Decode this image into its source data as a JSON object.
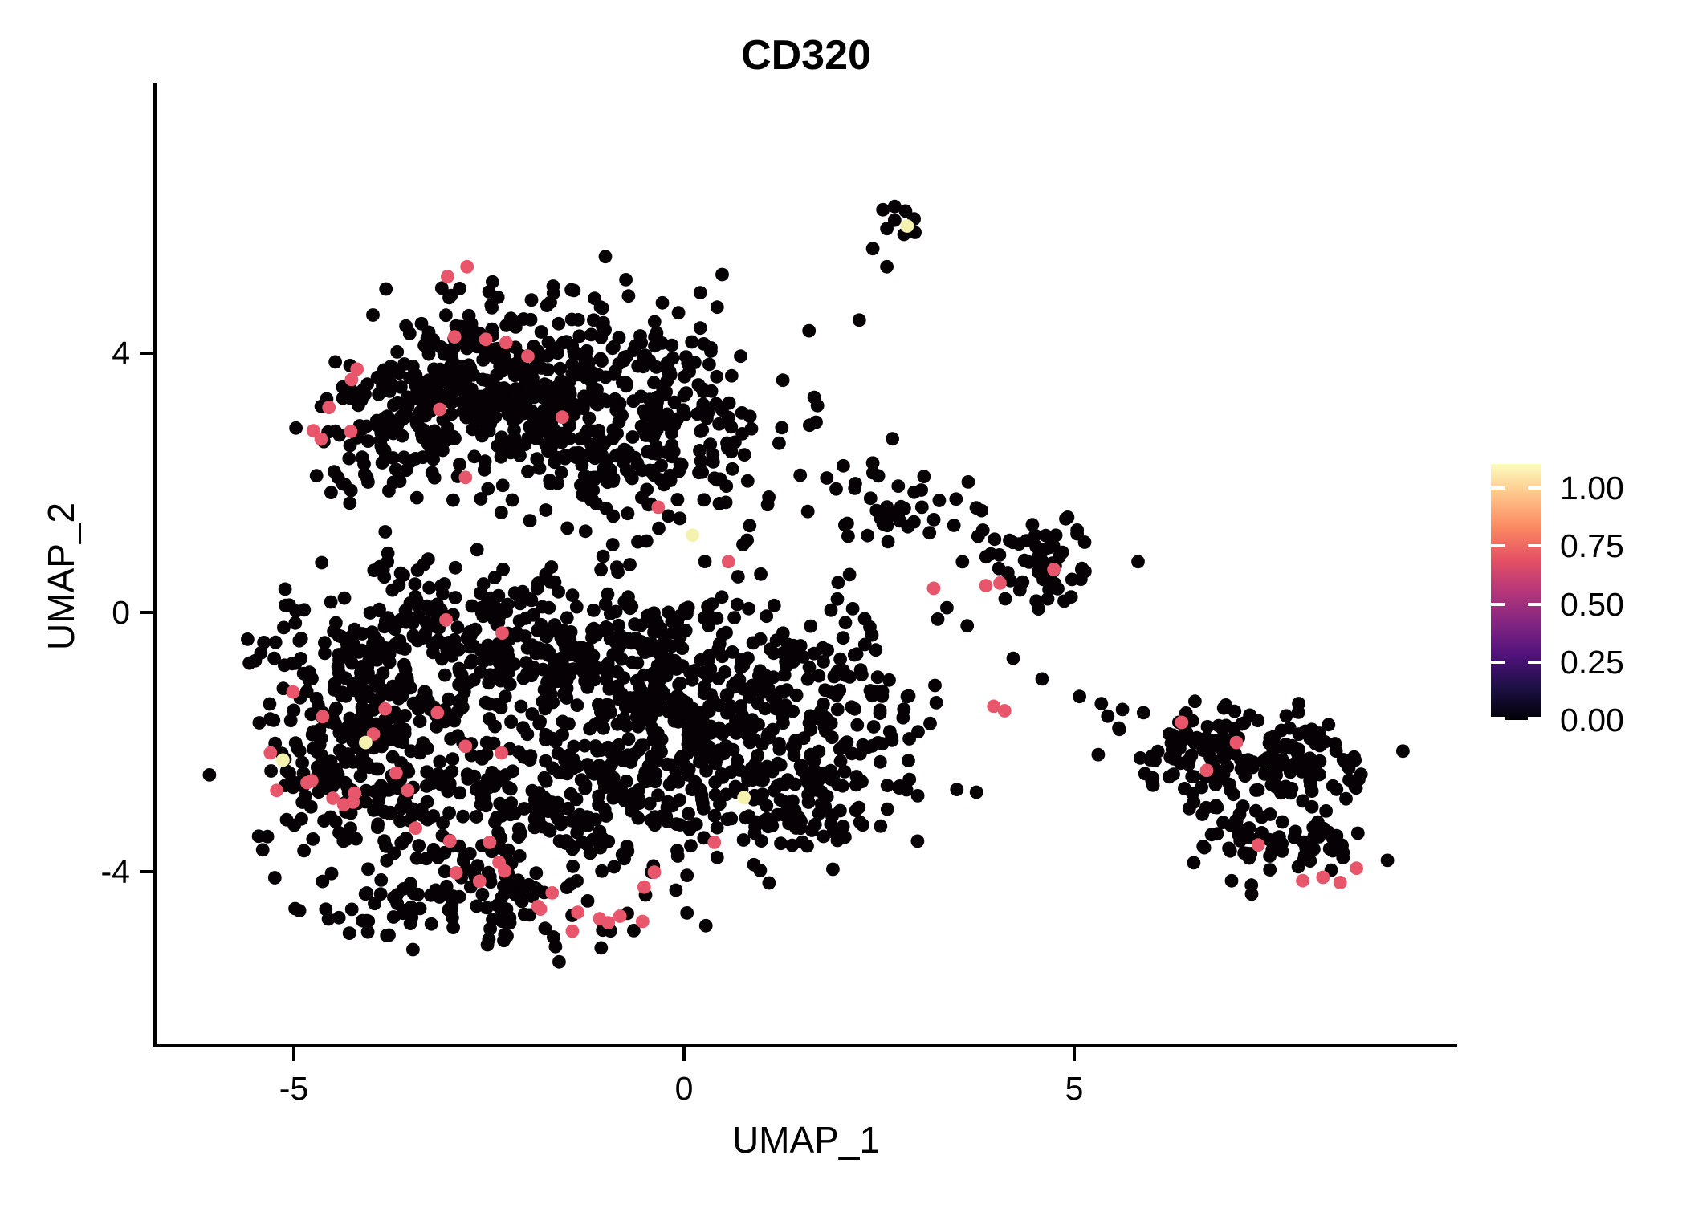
{
  "chart_data": {
    "type": "scatter",
    "title": "CD320",
    "xlabel": "UMAP_1",
    "ylabel": "UMAP_2",
    "x_ticks": [
      -5,
      0,
      5
    ],
    "x_tick_labels": [
      "-5",
      "0",
      "5"
    ],
    "y_ticks": [
      4,
      0,
      -4
    ],
    "y_tick_labels": [
      "4",
      "0",
      "-4"
    ],
    "xlim": [
      -6.78,
      9.91
    ],
    "ylim": [
      -6.69,
      8.17
    ],
    "grid": false,
    "legend": {
      "position": "right",
      "ticks": [
        "1.00",
        "0.75",
        "0.50",
        "0.25",
        "0.00"
      ],
      "tick_values": [
        1.0,
        0.75,
        0.5,
        0.25,
        0.0
      ],
      "value_range": [
        0,
        1.1
      ],
      "colormap": "magma",
      "gradient_stops": [
        "#000004",
        "#1c1044",
        "#4f127b",
        "#812581",
        "#b5367a",
        "#e55064",
        "#fb8861",
        "#fec287",
        "#fcfdbf"
      ]
    },
    "point_style": {
      "radius_px": 8.4,
      "color_zero": "#050105",
      "color_mid_high": "#E8566B",
      "color_high": "#F5F2AF"
    },
    "seed": 42,
    "clusters": [
      {
        "name": "upper-left-core",
        "cx": -2.2,
        "cy": 3.9,
        "sx": 1.05,
        "sy": 0.55,
        "n": 230
      },
      {
        "name": "upper-left-west",
        "cx": -3.8,
        "cy": 2.7,
        "sx": 0.55,
        "sy": 0.5,
        "n": 100
      },
      {
        "name": "upper-left-southeast",
        "cx": -0.9,
        "cy": 2.5,
        "sx": 0.8,
        "sy": 0.65,
        "n": 170
      },
      {
        "name": "upper-left-northeast-arm",
        "cx": -0.05,
        "cy": 3.6,
        "sx": 0.4,
        "sy": 0.55,
        "n": 45
      },
      {
        "name": "upper-left-midwest",
        "cx": -2.9,
        "cy": 3.3,
        "sx": 0.6,
        "sy": 0.5,
        "n": 80
      },
      {
        "name": "upper-left-fill",
        "cx": -1.6,
        "cy": 2.95,
        "sx": 0.7,
        "sy": 0.6,
        "n": 90
      },
      {
        "name": "upper-middle-sparse",
        "cx": 1.2,
        "cy": 2.7,
        "sx": 0.9,
        "sy": 0.85,
        "n": 28
      },
      {
        "name": "lower-blob-top-band",
        "cx": -2.6,
        "cy": -0.3,
        "sx": 1.25,
        "sy": 0.55,
        "n": 260
      },
      {
        "name": "lower-blob-west",
        "cx": -4.3,
        "cy": -2.3,
        "sx": 0.6,
        "sy": 0.75,
        "n": 190
      },
      {
        "name": "lower-blob-center",
        "cx": -2.0,
        "cy": -3.0,
        "sx": 1.05,
        "sy": 0.8,
        "n": 280
      },
      {
        "name": "lower-blob-east",
        "cx": 0.3,
        "cy": -1.3,
        "sx": 0.75,
        "sy": 0.95,
        "n": 230
      },
      {
        "name": "lower-blob-bottom-rim",
        "cx": -2.8,
        "cy": -4.5,
        "sx": 1.0,
        "sy": 0.3,
        "n": 90
      },
      {
        "name": "lower-blob-west-upper",
        "cx": -3.9,
        "cy": -1.2,
        "sx": 0.6,
        "sy": 0.5,
        "n": 90
      },
      {
        "name": "lower-blob-right-lobe",
        "cx": 1.9,
        "cy": -1.7,
        "sx": 0.65,
        "sy": 0.8,
        "n": 150
      },
      {
        "name": "lower-blob-right-lobe-south",
        "cx": 1.3,
        "cy": -3.0,
        "sx": 0.5,
        "sy": 0.5,
        "n": 80
      },
      {
        "name": "lower-blob-central-fill",
        "cx": -0.7,
        "cy": -2.0,
        "sx": 0.8,
        "sy": 0.8,
        "n": 120
      },
      {
        "name": "lower-blob-fill-nw",
        "cx": -1.3,
        "cy": -0.9,
        "sx": 0.8,
        "sy": 0.5,
        "n": 100
      },
      {
        "name": "mid-right-small-west",
        "cx": 2.7,
        "cy": 1.65,
        "sx": 0.4,
        "sy": 0.28,
        "n": 28
      },
      {
        "name": "mid-right-cluster",
        "cx": 4.5,
        "cy": 0.85,
        "sx": 0.38,
        "sy": 0.33,
        "n": 55
      },
      {
        "name": "mid-right-sparse",
        "cx": 3.6,
        "cy": 1.1,
        "sx": 0.45,
        "sy": 0.5,
        "n": 10
      },
      {
        "name": "right-cluster-west",
        "cx": 6.7,
        "cy": -2.05,
        "sx": 0.55,
        "sy": 0.28,
        "n": 85
      },
      {
        "name": "right-cluster-east",
        "cx": 7.95,
        "cy": -2.4,
        "sx": 0.45,
        "sy": 0.33,
        "n": 75
      },
      {
        "name": "right-cluster-tail",
        "cx": 7.7,
        "cy": -3.6,
        "sx": 0.5,
        "sy": 0.28,
        "n": 60
      },
      {
        "name": "right-cluster-bridge",
        "cx": 7.0,
        "cy": -2.95,
        "sx": 0.35,
        "sy": 0.3,
        "n": 35
      }
    ],
    "extra_black_points": [
      [
        2.55,
        6.21
      ],
      [
        2.7,
        6.26
      ],
      [
        2.84,
        6.19
      ],
      [
        2.95,
        6.07
      ],
      [
        2.7,
        6.05
      ],
      [
        2.6,
        5.92
      ],
      [
        2.82,
        5.83
      ],
      [
        2.96,
        5.86
      ],
      [
        2.42,
        5.61
      ],
      [
        2.6,
        5.33
      ],
      [
        -0.64,
        4.04
      ],
      [
        -0.35,
        4.31
      ],
      [
        -0.07,
        4.62
      ],
      [
        0.21,
        4.93
      ],
      [
        0.49,
        5.21
      ],
      [
        3.37,
        0.07
      ],
      [
        3.63,
        -0.21
      ],
      [
        4.22,
        -0.71
      ],
      [
        4.59,
        -1.03
      ],
      [
        5.07,
        -1.3
      ],
      [
        5.35,
        -1.41
      ],
      [
        5.62,
        -1.5
      ],
      [
        5.89,
        -1.55
      ],
      [
        5.82,
        0.78
      ],
      [
        3.46,
        1.34
      ],
      [
        3.05,
        1.62
      ]
    ],
    "pink_points": [
      [
        -2.94,
        4.25
      ],
      [
        -2.54,
        4.21
      ],
      [
        -2.28,
        4.16
      ],
      [
        -2.0,
        3.95
      ],
      [
        -4.19,
        3.75
      ],
      [
        -4.26,
        3.59
      ],
      [
        -4.55,
        3.16
      ],
      [
        -4.75,
        2.8
      ],
      [
        -4.65,
        2.67
      ],
      [
        -4.27,
        2.79
      ],
      [
        -3.13,
        3.13
      ],
      [
        -3.03,
        5.18
      ],
      [
        -2.78,
        5.33
      ],
      [
        -0.33,
        1.62
      ],
      [
        -1.56,
        3.01
      ],
      [
        -2.8,
        2.08
      ],
      [
        0.57,
        0.78
      ],
      [
        -4.63,
        -1.61
      ],
      [
        -3.83,
        -1.49
      ],
      [
        -3.16,
        -1.55
      ],
      [
        -3.98,
        -1.88
      ],
      [
        -2.8,
        -2.07
      ],
      [
        -2.34,
        -2.17
      ],
      [
        -3.69,
        -2.48
      ],
      [
        -4.83,
        -2.63
      ],
      [
        -4.22,
        -2.79
      ],
      [
        -4.5,
        -2.87
      ],
      [
        -4.36,
        -2.97
      ],
      [
        -3.54,
        -2.75
      ],
      [
        -3.44,
        -3.33
      ],
      [
        -3.0,
        -3.53
      ],
      [
        -2.49,
        -3.55
      ],
      [
        -2.37,
        -3.86
      ],
      [
        -2.62,
        -4.15
      ],
      [
        -2.92,
        -4.02
      ],
      [
        -1.87,
        -4.54
      ],
      [
        -4.77,
        -2.6
      ],
      [
        -5.22,
        -2.75
      ],
      [
        -4.24,
        -2.93
      ],
      [
        -2.3,
        -3.99
      ],
      [
        -1.69,
        -4.33
      ],
      [
        -1.84,
        -4.58
      ],
      [
        -1.36,
        -4.63
      ],
      [
        -1.08,
        -4.73
      ],
      [
        -0.97,
        -4.79
      ],
      [
        -0.82,
        -4.69
      ],
      [
        -0.51,
        -4.24
      ],
      [
        -0.38,
        -4.01
      ],
      [
        -0.53,
        -4.77
      ],
      [
        -1.43,
        -4.92
      ],
      [
        -5.01,
        -1.23
      ],
      [
        -5.3,
        -2.17
      ],
      [
        -3.05,
        -0.12
      ],
      [
        -2.33,
        -0.32
      ],
      [
        0.39,
        -3.55
      ],
      [
        3.2,
        0.37
      ],
      [
        3.87,
        0.41
      ],
      [
        4.05,
        0.45
      ],
      [
        4.74,
        0.66
      ],
      [
        3.97,
        -1.45
      ],
      [
        4.11,
        -1.52
      ],
      [
        6.38,
        -1.7
      ],
      [
        7.08,
        -2.01
      ],
      [
        6.7,
        -2.44
      ],
      [
        7.36,
        -3.59
      ],
      [
        7.93,
        -4.14
      ],
      [
        8.19,
        -4.09
      ],
      [
        8.41,
        -4.17
      ],
      [
        8.62,
        -3.95
      ]
    ],
    "yellow_points": [
      [
        2.86,
        5.96
      ],
      [
        0.11,
        1.19
      ],
      [
        -4.08,
        -2.01
      ],
      [
        -5.14,
        -2.28
      ],
      [
        0.77,
        -2.86
      ]
    ]
  }
}
